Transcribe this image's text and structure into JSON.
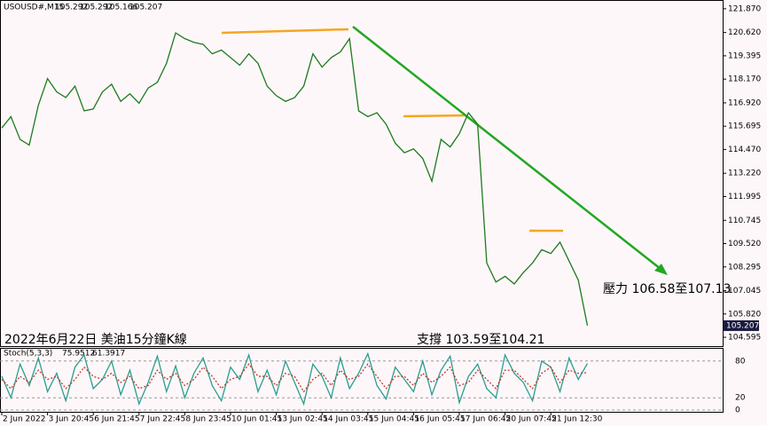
{
  "chart_data": {
    "type": "line",
    "symbol": "USOUSD#,M15",
    "ohlc": [
      105.292,
      105.292,
      105.166,
      105.207
    ],
    "annotations": [
      "2022年6月22日 美油15分鐘K線",
      "支撐 103.59至104.21",
      "壓力 106.58至107.13"
    ],
    "categories": [
      "2 Jun 2022",
      null,
      null,
      null,
      null,
      "3 Jun 20:45",
      null,
      null,
      null,
      null,
      "6 Jun 21:45",
      null,
      null,
      null,
      null,
      "7 Jun 22:45",
      null,
      null,
      null,
      null,
      "8 Jun 23:45",
      null,
      null,
      null,
      null,
      "10 Jun 01:45",
      null,
      null,
      null,
      null,
      "13 Jun 02:45",
      null,
      null,
      null,
      null,
      "14 Jun 03:45",
      null,
      null,
      null,
      null,
      "15 Jun 04:45",
      null,
      null,
      null,
      null,
      "16 Jun 05:45",
      null,
      null,
      null,
      null,
      "17 Jun 06:45",
      null,
      null,
      null,
      null,
      "20 Jun 07:45",
      null,
      null,
      null,
      null,
      "21 Jun 12:30",
      null,
      null,
      null,
      null
    ],
    "series": [
      {
        "color": "#1e7a1e",
        "values": [
          115.6,
          116.2,
          115.0,
          114.7,
          116.8,
          118.2,
          117.5,
          117.2,
          117.8,
          116.5,
          116.6,
          117.5,
          117.9,
          117.0,
          117.4,
          116.9,
          117.7,
          118.0,
          119.0,
          120.6,
          120.3,
          120.1,
          120.0,
          119.5,
          119.7,
          119.3,
          118.9,
          119.5,
          119.0,
          117.8,
          117.3,
          117.0,
          117.2,
          117.8,
          119.5,
          118.8,
          119.3,
          119.6,
          120.3,
          116.5,
          116.2,
          116.4,
          115.8,
          114.8,
          114.3,
          114.5,
          114.0,
          112.8,
          115.0,
          114.6,
          115.3,
          116.4,
          115.8,
          108.5,
          107.5,
          107.8,
          107.4,
          108.0,
          108.5,
          109.2,
          109.0,
          109.6,
          108.6,
          107.6,
          105.207
        ]
      }
    ],
    "ylim": [
      104.13,
      122.33
    ],
    "yticks": [
      {
        "value": 121.87,
        "label": "121.870"
      },
      {
        "value": 120.62,
        "label": "120.620"
      },
      119.395,
      {
        "value": 118.17,
        "label": "118.170"
      },
      {
        "value": 116.92,
        "label": "116.920"
      },
      115.695,
      {
        "value": 114.47,
        "label": "114.470"
      },
      {
        "value": 113.22,
        "label": "113.220"
      },
      111.995,
      110.745,
      {
        "value": 109.52,
        "label": "109.520"
      },
      108.295,
      107.045,
      {
        "value": 105.82,
        "label": "105.820"
      },
      104.595
    ],
    "stoch": {
      "name": "Stoch(5,3,3)",
      "last": [
        75.9512,
        61.3917
      ],
      "ylim": [
        0,
        100
      ],
      "yticks": [
        0,
        20,
        80
      ],
      "series": [
        {
          "color": "#2a9d8f",
          "values": [
            55,
            20,
            75,
            40,
            85,
            30,
            60,
            15,
            70,
            90,
            35,
            50,
            80,
            25,
            65,
            10,
            45,
            88,
            30,
            72,
            20,
            60,
            85,
            40,
            15,
            70,
            50,
            90,
            30,
            65,
            25,
            80,
            45,
            10,
            75,
            55,
            20,
            85,
            35,
            60,
            92,
            40,
            18,
            70,
            50,
            30,
            80,
            25,
            65,
            88,
            12,
            55,
            75,
            35,
            20,
            90,
            60,
            45,
            15,
            80,
            70,
            30,
            85,
            50,
            76
          ]
        },
        {
          "color": "#c0392b",
          "values": [
            50,
            35,
            55,
            45,
            65,
            50,
            55,
            35,
            50,
            70,
            55,
            50,
            60,
            45,
            55,
            35,
            40,
            65,
            50,
            60,
            40,
            50,
            70,
            55,
            35,
            50,
            55,
            75,
            55,
            55,
            40,
            60,
            55,
            30,
            50,
            60,
            40,
            65,
            50,
            55,
            75,
            55,
            35,
            55,
            55,
            40,
            60,
            45,
            55,
            70,
            40,
            45,
            65,
            50,
            35,
            65,
            65,
            50,
            35,
            60,
            70,
            45,
            65,
            60,
            61
          ]
        }
      ]
    }
  }
}
